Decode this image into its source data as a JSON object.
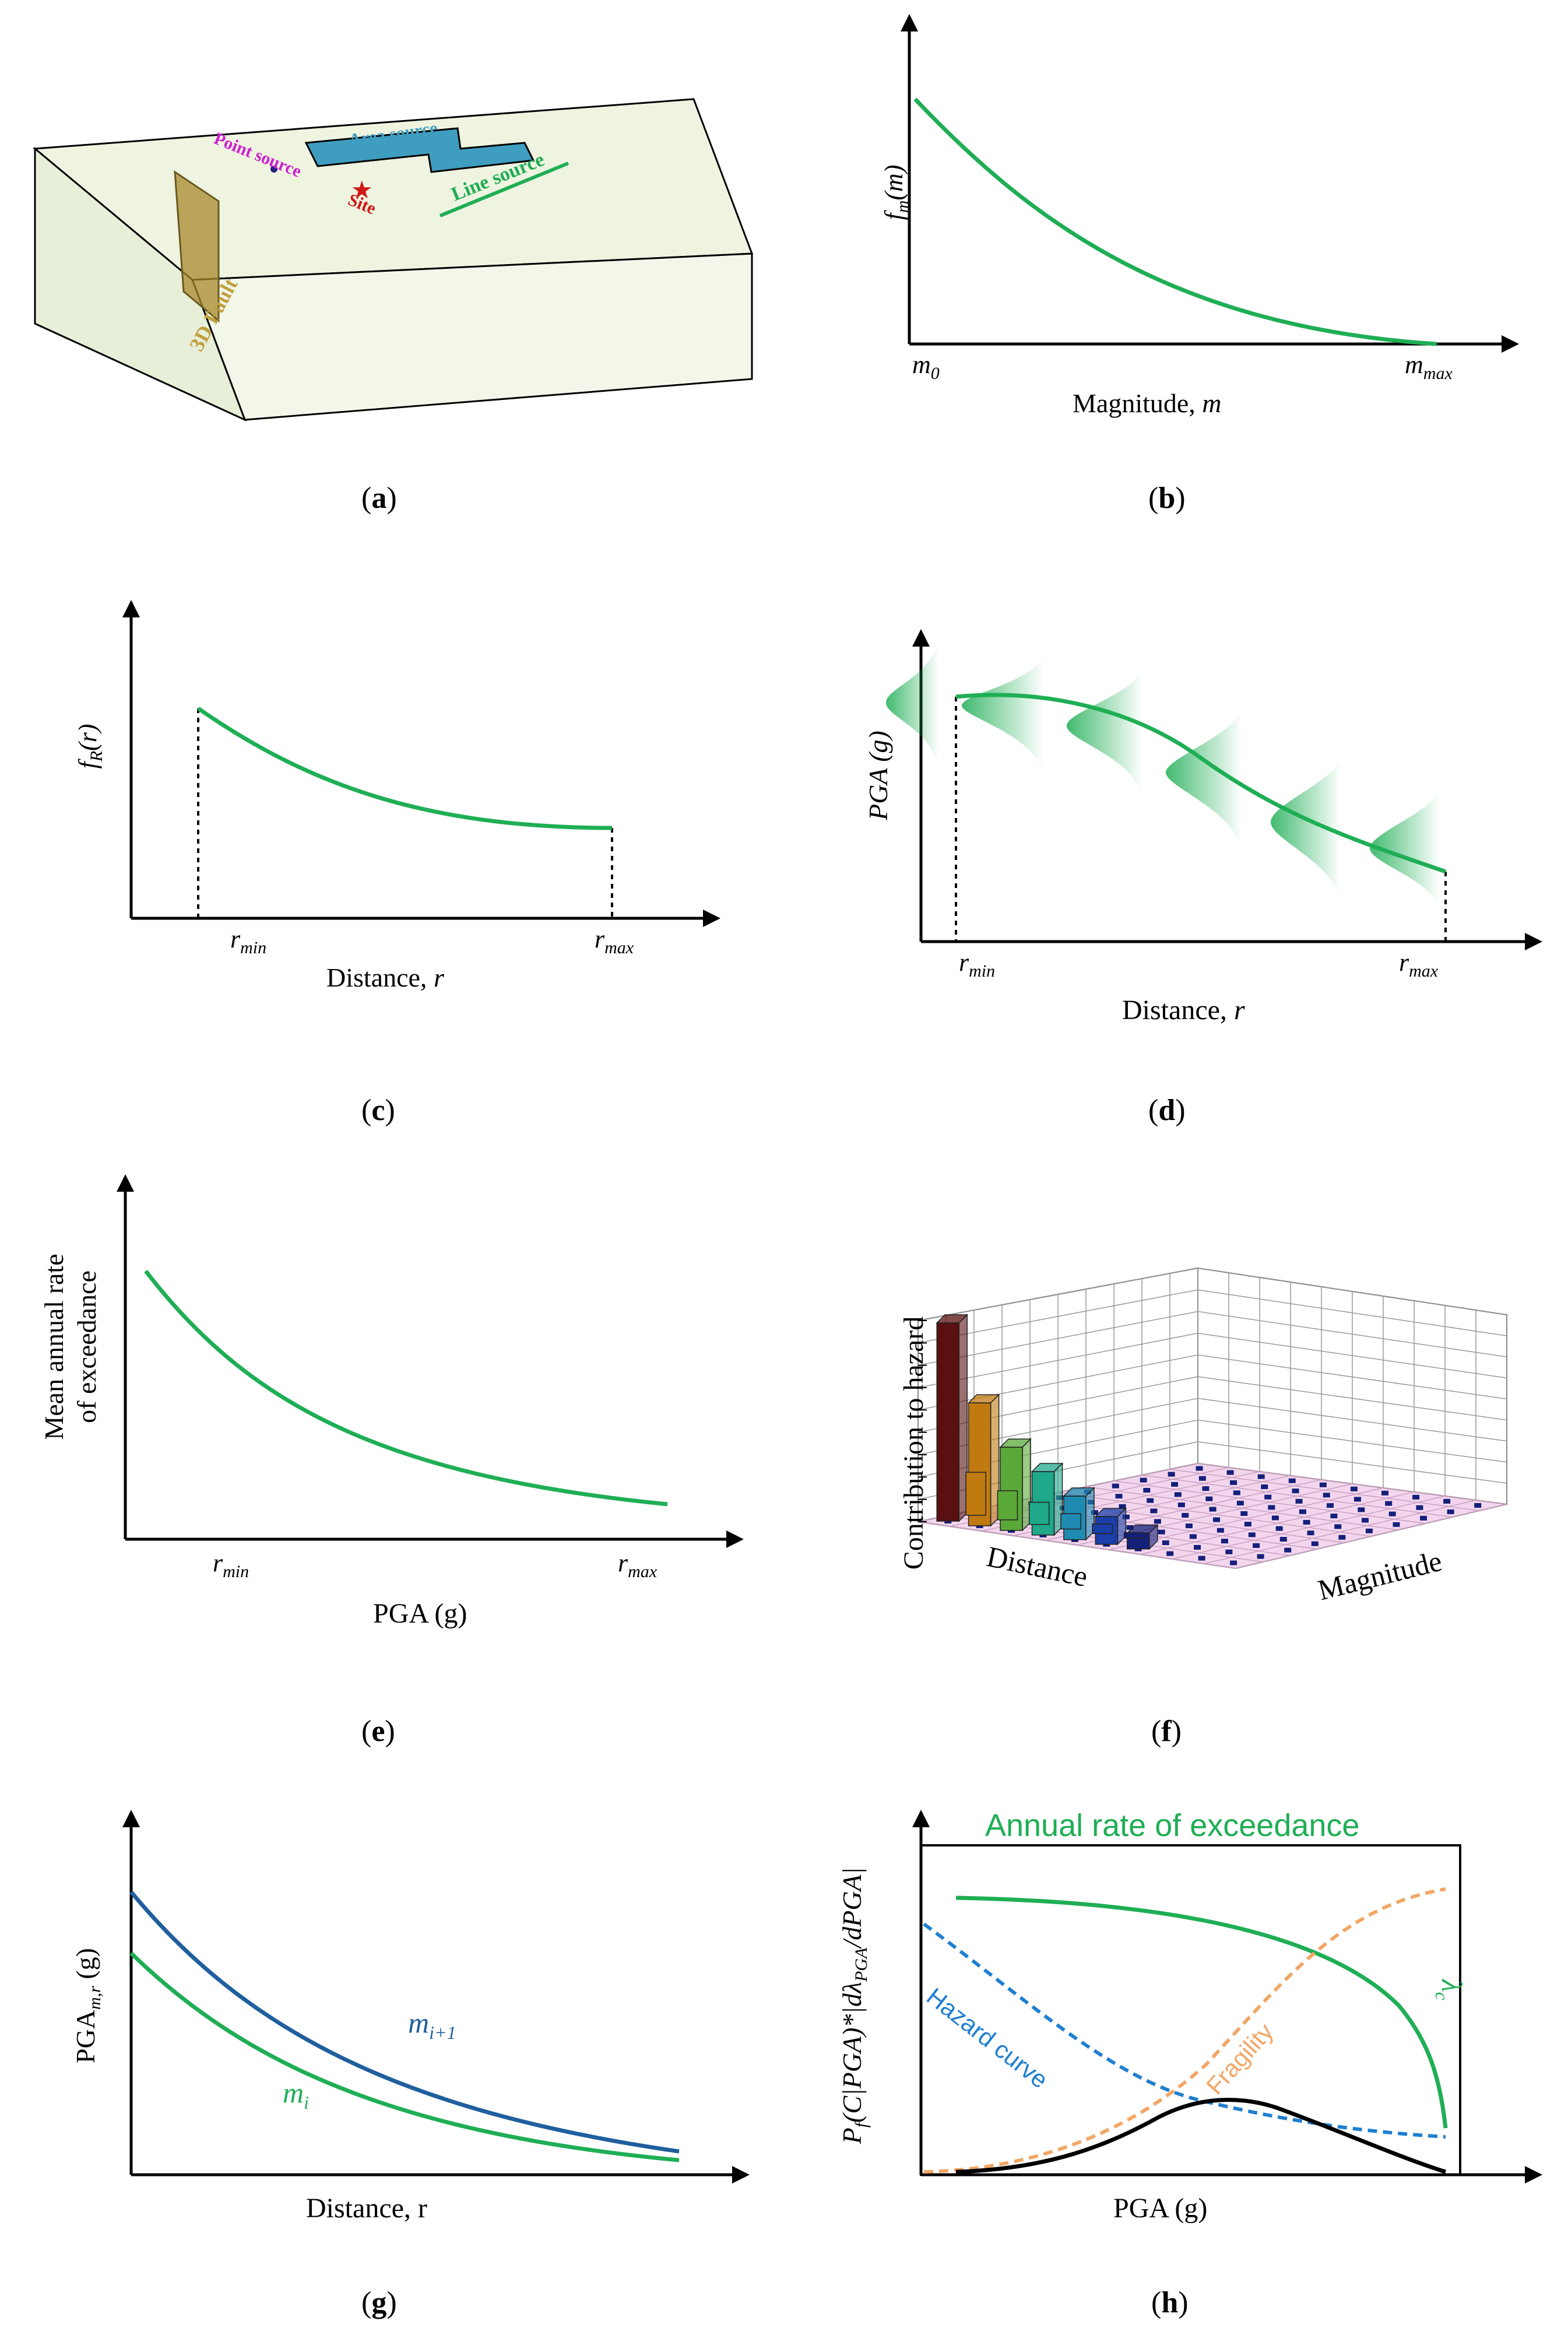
{
  "colors": {
    "green": "#1fae55",
    "blue": "#1f5f9e",
    "blue_dash": "#1f7fd0",
    "orange": "#f2a766",
    "black": "#000000",
    "box_face": "#f0f5e4",
    "area_fill": "#3f9ec0",
    "fault_fill": "#a88a2e",
    "site_red": "#d01818",
    "magenta": "#d020d0",
    "line_source_green": "#1fae55"
  },
  "panels": {
    "a": {
      "caption_letter": "a",
      "labels": {
        "point_source": "Point source",
        "area_source": "Area source",
        "site": "Site",
        "line_source": "Line source",
        "fault": "3D Fault"
      },
      "icons": {
        "site": "star-icon",
        "point": "dot-icon"
      }
    },
    "b": {
      "caption_letter": "b",
      "ylabel_main": "f",
      "ylabel_sub": "m",
      "ylabel_arg": "(m)",
      "x_start": "m",
      "x_start_sub": "0",
      "x_end": "m",
      "x_end_sub": "max",
      "xlabel": "Magnitude, ",
      "xlabel_var": "m"
    },
    "c": {
      "caption_letter": "c",
      "ylabel_main": "f",
      "ylabel_sub": "R",
      "ylabel_arg": "(r)",
      "x_start": "r",
      "x_start_sub": "min",
      "x_end": "r",
      "x_end_sub": "max",
      "xlabel": "Distance, ",
      "xlabel_var": "r"
    },
    "d": {
      "caption_letter": "d",
      "ylabel": "PGA (g)",
      "x_start": "r",
      "x_start_sub": "min",
      "x_end": "r",
      "x_end_sub": "max",
      "xlabel": "Distance, ",
      "xlabel_var": "r"
    },
    "e": {
      "caption_letter": "e",
      "ylabel_line1": "Mean annual rate",
      "ylabel_line2": "of exceedance",
      "x_start": "r",
      "x_start_sub": "min",
      "x_end": "r",
      "x_end_sub": "max",
      "xlabel": "PGA (g)"
    },
    "f": {
      "caption_letter": "f",
      "ylabel": "Contribution to hazard",
      "xlabel_distance": "Distance",
      "xlabel_magnitude": "Magnitude",
      "bars": [
        {
          "color": "#5a1010",
          "value": 1.0
        },
        {
          "color": "#c07a10",
          "value": 0.62
        },
        {
          "color": "#5aa838",
          "value": 0.42
        },
        {
          "color": "#1fa88a",
          "value": 0.32
        },
        {
          "color": "#1f8ab0",
          "value": 0.22
        },
        {
          "color": "#1b3fa8",
          "value": 0.14
        },
        {
          "color": "#14207a",
          "value": 0.08
        }
      ]
    },
    "g": {
      "caption_letter": "g",
      "ylabel_main": "PGA",
      "ylabel_sub": "m,r",
      "ylabel_unit": " (g)",
      "xlabel": "Distance, r",
      "label_upper": "m",
      "label_upper_sub": "i+1",
      "label_lower": "m",
      "label_lower_sub": "i"
    },
    "h": {
      "caption_letter": "h",
      "title": "Annual rate of exceedance",
      "ylabel": "P",
      "ylabel_sub": "f",
      "ylabel_rest": "(C|PGA)*|dλ",
      "ylabel_sub2": "PGA",
      "ylabel_end": "/dPGA|",
      "xlabel": "PGA (g)",
      "hazard_label": "Hazard curve",
      "fragility_label": "Fragility",
      "lambda_label": "λ",
      "lambda_sub": "c"
    }
  }
}
